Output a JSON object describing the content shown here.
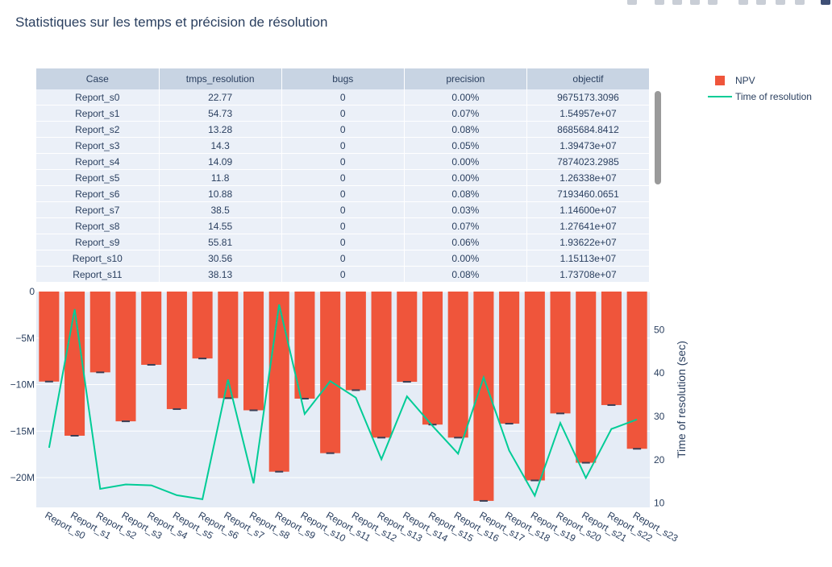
{
  "title": "Statistiques sur les temps et précision de résolution",
  "table": {
    "headers": [
      "Case",
      "tmps_resolution",
      "bugs",
      "precision",
      "objectif"
    ],
    "rows": [
      [
        "Report_s0",
        "22.77",
        "0",
        "0.00%",
        "9675173.3096"
      ],
      [
        "Report_s1",
        "54.73",
        "0",
        "0.07%",
        "1.54957e+07"
      ],
      [
        "Report_s2",
        "13.28",
        "0",
        "0.08%",
        "8685684.8412"
      ],
      [
        "Report_s3",
        "14.3",
        "0",
        "0.05%",
        "1.39473e+07"
      ],
      [
        "Report_s4",
        "14.09",
        "0",
        "0.00%",
        "7874023.2985"
      ],
      [
        "Report_s5",
        "11.8",
        "0",
        "0.00%",
        "1.26338e+07"
      ],
      [
        "Report_s6",
        "10.88",
        "0",
        "0.08%",
        "7193460.0651"
      ],
      [
        "Report_s7",
        "38.5",
        "0",
        "0.03%",
        "1.14600e+07"
      ],
      [
        "Report_s8",
        "14.55",
        "0",
        "0.07%",
        "1.27641e+07"
      ],
      [
        "Report_s9",
        "55.81",
        "0",
        "0.06%",
        "1.93622e+07"
      ],
      [
        "Report_s10",
        "30.56",
        "0",
        "0.00%",
        "1.15113e+07"
      ],
      [
        "Report_s11",
        "38.13",
        "0",
        "0.08%",
        "1.73708e+07"
      ]
    ]
  },
  "legend": {
    "bar_label": "NPV",
    "line_label": "Time of resolution"
  },
  "colors": {
    "bar": "#ef553b",
    "line": "#00cc96",
    "plot_bg": "#e5ecf6",
    "text": "#2a3f5f"
  },
  "chart_data": {
    "type": "bar",
    "categories": [
      "Report_s0",
      "Report_s1",
      "Report_s2",
      "Report_s3",
      "Report_s4",
      "Report_s5",
      "Report_s6",
      "Report_s7",
      "Report_s8",
      "Report_s9",
      "Report_s10",
      "Report_s11",
      "Report_s12",
      "Report_s13",
      "Report_s14",
      "Report_s15",
      "Report_s16",
      "Report_s17",
      "Report_s18",
      "Report_s19",
      "Report_s20",
      "Report_s21",
      "Report_s22",
      "Report_s23"
    ],
    "series": [
      {
        "name": "NPV",
        "type": "bar",
        "axis": "y",
        "values": [
          -9675173,
          -15495700,
          -8685685,
          -13947300,
          -7874023,
          -12633800,
          -7193460,
          -11460000,
          -12764100,
          -19362200,
          -11511300,
          -17370800,
          -10600000,
          -15700000,
          -9700000,
          -14300000,
          -15700000,
          -22500000,
          -14200000,
          -20300000,
          -13100000,
          -18400000,
          -12200000,
          -16900000
        ]
      },
      {
        "name": "Time of resolution",
        "type": "line",
        "axis": "y2",
        "values": [
          22.77,
          54.73,
          13.28,
          14.3,
          14.09,
          11.8,
          10.88,
          38.5,
          14.55,
          55.81,
          30.56,
          38.13,
          34.3,
          20.1,
          34.6,
          27.8,
          21.4,
          39.0,
          22.1,
          11.7,
          28.5,
          15.8,
          27.1,
          29.3
        ]
      }
    ],
    "y": {
      "ticks": [
        0,
        -5000000,
        -10000000,
        -15000000,
        -20000000
      ],
      "tick_labels": [
        "0",
        "−5M",
        "−10M",
        "−15M",
        "−20M"
      ],
      "range": [
        -23200000,
        0
      ]
    },
    "y2": {
      "label": "Time of resolution (sec)",
      "ticks": [
        10,
        20,
        30,
        40,
        50
      ],
      "tick_labels": [
        "10",
        "20",
        "30",
        "40",
        "50"
      ],
      "range": [
        9.0,
        58.8
      ]
    },
    "grid": true,
    "legend_position": "top-right"
  }
}
